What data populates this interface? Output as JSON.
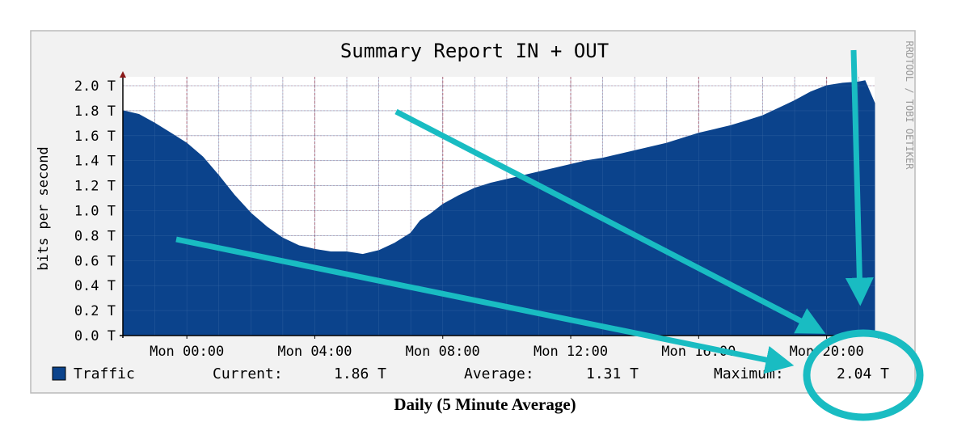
{
  "chart_data": {
    "type": "area",
    "title": "Summary Report IN + OUT",
    "ylabel": "bits per second",
    "side_label": "RRDTOOL / TOBI OETIKER",
    "unit": "T",
    "ylim": [
      0,
      2.0
    ],
    "y_ticks": [
      "0.0 T",
      "0.2 T",
      "0.4 T",
      "0.6 T",
      "0.8 T",
      "1.0 T",
      "1.2 T",
      "1.4 T",
      "1.6 T",
      "1.8 T",
      "2.0 T"
    ],
    "x_ticks": [
      "Mon 00:00",
      "Mon 04:00",
      "Mon 08:00",
      "Mon 12:00",
      "Mon 16:00",
      "Mon 20:00"
    ],
    "grid": true,
    "series": [
      {
        "name": "Traffic",
        "color": "#0b438c",
        "points": [
          [
            -2.0,
            1.8
          ],
          [
            -1.5,
            1.77
          ],
          [
            -1.0,
            1.7
          ],
          [
            -0.5,
            1.62
          ],
          [
            0.0,
            1.54
          ],
          [
            0.5,
            1.43
          ],
          [
            1.0,
            1.28
          ],
          [
            1.5,
            1.12
          ],
          [
            2.0,
            0.98
          ],
          [
            2.5,
            0.87
          ],
          [
            3.0,
            0.78
          ],
          [
            3.5,
            0.72
          ],
          [
            4.0,
            0.69
          ],
          [
            4.5,
            0.67
          ],
          [
            5.0,
            0.67
          ],
          [
            5.5,
            0.65
          ],
          [
            6.0,
            0.68
          ],
          [
            6.5,
            0.74
          ],
          [
            7.0,
            0.82
          ],
          [
            7.3,
            0.92
          ],
          [
            7.6,
            0.97
          ],
          [
            8.0,
            1.05
          ],
          [
            8.5,
            1.12
          ],
          [
            9.0,
            1.18
          ],
          [
            9.5,
            1.22
          ],
          [
            10.0,
            1.25
          ],
          [
            10.5,
            1.28
          ],
          [
            11.0,
            1.31
          ],
          [
            11.5,
            1.34
          ],
          [
            12.0,
            1.37
          ],
          [
            12.5,
            1.4
          ],
          [
            13.0,
            1.42
          ],
          [
            13.5,
            1.45
          ],
          [
            14.0,
            1.48
          ],
          [
            14.5,
            1.51
          ],
          [
            15.0,
            1.54
          ],
          [
            15.5,
            1.58
          ],
          [
            16.0,
            1.62
          ],
          [
            16.5,
            1.65
          ],
          [
            17.0,
            1.68
          ],
          [
            17.5,
            1.72
          ],
          [
            18.0,
            1.76
          ],
          [
            18.5,
            1.82
          ],
          [
            19.0,
            1.88
          ],
          [
            19.5,
            1.95
          ],
          [
            20.0,
            2.0
          ],
          [
            20.5,
            2.02
          ],
          [
            21.0,
            2.03
          ],
          [
            21.2,
            2.04
          ],
          [
            21.5,
            1.86
          ]
        ]
      }
    ],
    "legend": {
      "series_name": "Traffic",
      "current_label": "Current:",
      "current_value": "1.86 T",
      "average_label": "Average:",
      "average_value": "1.31 T",
      "maximum_label": "Maximum:",
      "maximum_value": "2.04 T"
    },
    "caption": "Daily (5 Minute Average)",
    "annotation_color": "#19bcc2"
  }
}
